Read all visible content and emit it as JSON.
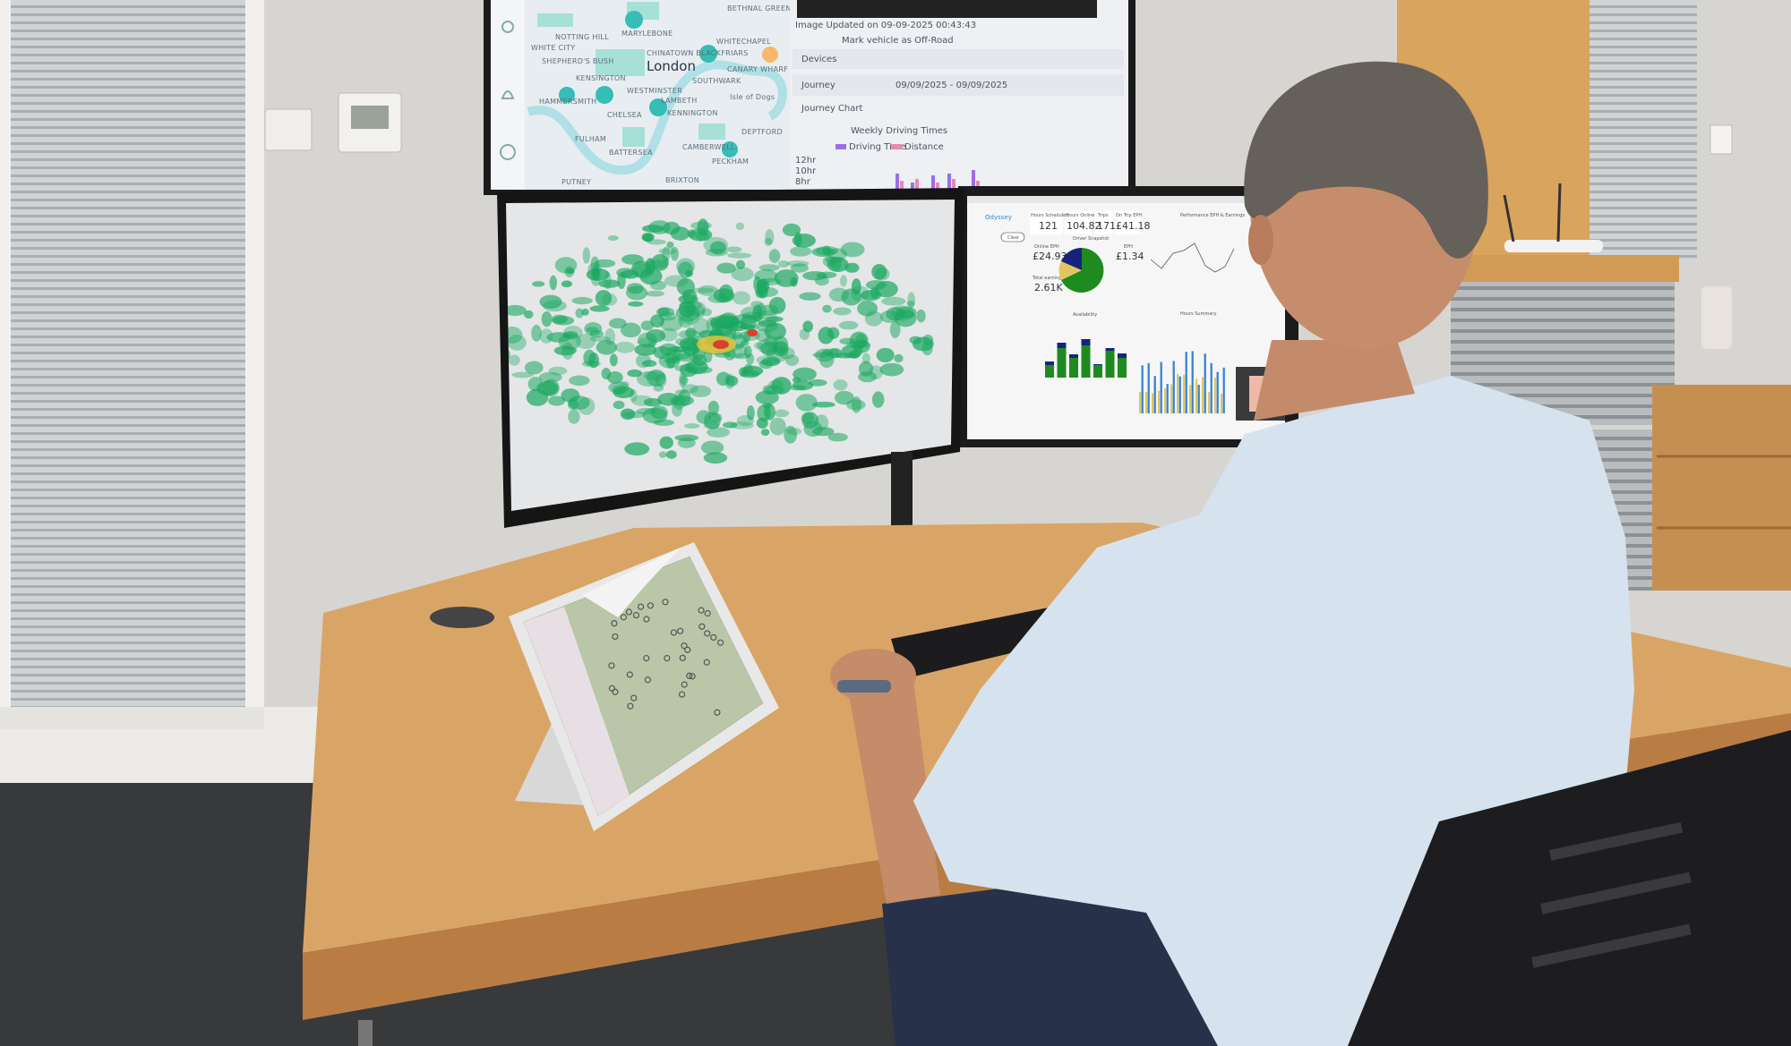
{
  "top_monitor": {
    "city_label": "London",
    "map_labels": [
      "NOTTING HILL",
      "MARYLEBONE",
      "WHITE CITY",
      "SHEPHERD'S BUSH",
      "KENSINGTON",
      "CHINATOWN  BLACKFRIARS",
      "WHITECHAPEL",
      "CANARY WHARF",
      "SOUTHWARK",
      "WESTMINSTER",
      "LAMBETH",
      "KENNINGTON",
      "HAMMERSMITH",
      "CHELSEA",
      "Isle of Dogs",
      "FULHAM",
      "BATTERSEA",
      "CAMBERWELL",
      "PECKHAM",
      "DEPTFORD",
      "PUTNEY",
      "BRIXTON",
      "BETHNAL GREEN"
    ],
    "panel": {
      "image_updated": "Image Updated on 09-09-2025 00:43:43",
      "mark_off_road": "Mark vehicle as Off-Road",
      "sections": [
        "Devices",
        "Journey",
        "Journey Chart"
      ],
      "journey_range": "09/09/2025 - 09/09/2025",
      "chart_title": "Weekly Driving Times",
      "legend": [
        "Driving Time",
        "Distance"
      ],
      "y_ticks": [
        "12hr",
        "10hr",
        "8hr"
      ]
    }
  },
  "right_monitor": {
    "logo": "Odyssey",
    "clear_button": "Clear",
    "kpis": [
      {
        "label": "Hours Scheduled",
        "value": "121"
      },
      {
        "label": "Hours Online",
        "value": "104.82"
      },
      {
        "label": "Trips",
        "value": "171"
      },
      {
        "label": "On Trip EPH",
        "value": "£41.18"
      }
    ],
    "driver_snapshot": "Driver Snapshot",
    "online_eph": {
      "label": "Online EPH",
      "value": "£24.93"
    },
    "eph": {
      "label": "EPH",
      "value": "£1.34"
    },
    "total_earnings": {
      "label": "Total earnings",
      "value": "2.61K"
    },
    "performance_title": "Performance EPH & Earnings",
    "availability_title": "Availability",
    "hours_summary_title": "Hours Summary"
  },
  "colors": {
    "map_teal": "#3fc4bd",
    "heat_green": "#1aa860",
    "dash_green": "#1f8a1f",
    "dash_navy": "#17237a",
    "dash_yellow": "#e2c560",
    "dash_blue": "#2f7fd6",
    "desk": "#d9a566",
    "shirt": "#d6e3ef"
  }
}
